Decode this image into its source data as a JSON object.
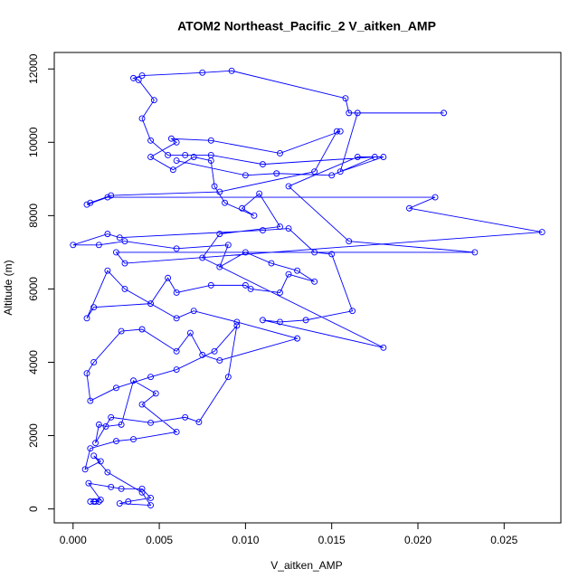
{
  "chart_data": {
    "type": "line",
    "title": "ATOM2 Northeast_Pacific_2 V_aitken_AMP",
    "x_label": "V_aitken_AMP",
    "y_label": "Altitude (m)",
    "marker": "open-circle",
    "xlim": [
      -0.00109,
      0.02829
    ],
    "ylim": [
      -380,
      12450
    ],
    "xticks": [
      {
        "value": 0,
        "label": "0.000"
      },
      {
        "value": 0.005,
        "label": "0.005"
      },
      {
        "value": 0.01,
        "label": "0.010"
      },
      {
        "value": 0.015,
        "label": "0.015"
      },
      {
        "value": 0.02,
        "label": "0.020"
      },
      {
        "value": 0.025,
        "label": "0.025"
      }
    ],
    "yticks": [
      0,
      2000,
      4000,
      6000,
      8000,
      10000,
      12000
    ],
    "series": [
      {
        "color": "#0000ff",
        "x": [
          0.0012,
          0.0015,
          0.001,
          0.0013,
          0.0016,
          0.0009,
          0.0022,
          0.0028,
          0.004,
          0.0045,
          0.0032,
          0.0027,
          0.0045,
          0.004,
          0.002,
          0.0012,
          0.0016,
          0.0007,
          0.001,
          0.0025,
          0.0035,
          0.006,
          0.004,
          0.0048,
          0.0035,
          0.0028,
          0.0019,
          0.0015,
          0.0013,
          0.0022,
          0.0045,
          0.0065,
          0.0073,
          0.009,
          0.0095,
          0.0082,
          0.006,
          0.0045,
          0.0025,
          0.001,
          0.0008,
          0.0012,
          0.0028,
          0.004,
          0.006,
          0.0068,
          0.0075,
          0.0085,
          0.013,
          0.0095,
          0.007,
          0.006,
          0.003,
          0.002,
          0.0008,
          0.0012,
          0.0045,
          0.0055,
          0.006,
          0.008,
          0.01,
          0.0103,
          0.012,
          0.0125,
          0.014,
          0.013,
          0.0115,
          0.01,
          0.0085,
          0.009,
          0.006,
          0.003,
          0.0015,
          0.0,
          0.002,
          0.0027,
          0.011,
          0.0125,
          0.014,
          0.015,
          0.0162,
          0.0135,
          0.012,
          0.011,
          0.018,
          0.0075,
          0.0085,
          0.012,
          0.0108,
          0.0098,
          0.0105,
          0.0088,
          0.0082,
          0.008,
          0.007,
          0.0058,
          0.0045,
          0.006,
          0.0057,
          0.008,
          0.012,
          0.0155,
          0.0153,
          0.014,
          0.0085,
          0.0022,
          0.001,
          0.0008,
          0.002,
          0.021,
          0.0195,
          0.0272,
          0.003,
          0.0025,
          0.0233,
          0.016,
          0.0125,
          0.0165,
          0.018,
          0.0155,
          0.0165,
          0.0215,
          0.016,
          0.0158,
          0.0092,
          0.0075,
          0.004,
          0.0035,
          0.0038,
          0.0047,
          0.004,
          0.0045,
          0.0055,
          0.0065,
          0.008,
          0.011,
          0.0175,
          0.015,
          0.0118,
          0.01,
          0.006
        ],
        "values": [
          200,
          200,
          200,
          200,
          250,
          700,
          600,
          550,
          550,
          300,
          200,
          150,
          100,
          450,
          1000,
          1450,
          1300,
          1080,
          1650,
          1850,
          1900,
          2100,
          2850,
          3150,
          3500,
          2300,
          2250,
          2300,
          1800,
          2500,
          2350,
          2500,
          2370,
          3600,
          5000,
          4300,
          3800,
          3600,
          3300,
          2950,
          3700,
          4000,
          4850,
          4900,
          4300,
          4800,
          4200,
          4050,
          4650,
          5100,
          5400,
          5200,
          6000,
          6500,
          5200,
          5500,
          5600,
          6300,
          5900,
          6100,
          6100,
          6000,
          5900,
          6400,
          6200,
          6500,
          6700,
          7000,
          6600,
          7200,
          7100,
          7300,
          7200,
          7200,
          7500,
          7400,
          7600,
          7650,
          7000,
          6950,
          5400,
          5150,
          5100,
          5150,
          4400,
          6850,
          7500,
          7700,
          8600,
          8200,
          8000,
          8350,
          8800,
          9500,
          9600,
          9250,
          9600,
          10000,
          10100,
          10050,
          9700,
          10300,
          10300,
          9200,
          8650,
          8550,
          8350,
          8300,
          8500,
          8500,
          8200,
          7550,
          6700,
          7000,
          7000,
          7300,
          8800,
          9600,
          9600,
          9200,
          10800,
          10800,
          10800,
          11200,
          11950,
          11900,
          11820,
          11750,
          11700,
          11150,
          10650,
          10050,
          9650,
          9650,
          9650,
          9400,
          9600,
          9100,
          9150,
          9100,
          9500
        ]
      }
    ]
  }
}
